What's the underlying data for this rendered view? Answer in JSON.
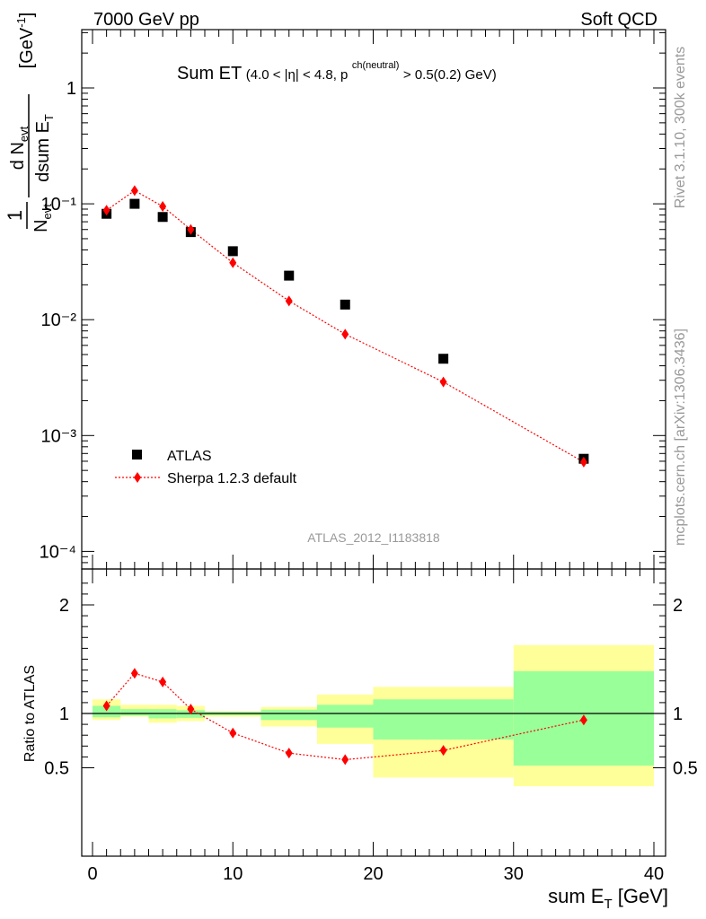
{
  "header": {
    "left": "7000 GeV pp",
    "right": "Soft QCD"
  },
  "side": {
    "rivet": "Rivet 3.1.10,  300k events",
    "mcplots": "mcplots.cern.ch [arXiv:1306.3436]"
  },
  "plot_title": {
    "main": "Sum ET",
    "cond_a": "(4.0 < |η| < 4.8, p",
    "cond_sup": "ch(neutral)",
    "cond_b": " > 0.5(0.2) GeV)"
  },
  "analysis_id": "ATLAS_2012_I1183818",
  "colors": {
    "data": "#000000",
    "mc": "#ff0000",
    "band_inner": "#99ff99",
    "band_outer": "#ffff99"
  },
  "chart_data": [
    {
      "type": "scatter",
      "log_y": true,
      "ylim": [
        7e-05,
        3.2
      ],
      "xlim": [
        -1,
        41
      ],
      "ylabel": "1/N_evt dN_evt/dsum E_T [GeV^-1]",
      "yticks": [
        "10⁻⁴",
        "10⁻³",
        "10⁻²",
        "10⁻¹",
        "1"
      ],
      "legend_position": "bottom-left",
      "series": [
        {
          "name": "ATLAS",
          "marker": "square",
          "x": [
            1,
            3,
            5,
            7,
            10,
            14,
            18,
            25,
            35
          ],
          "y": [
            0.082,
            0.1,
            0.077,
            0.057,
            0.039,
            0.024,
            0.0135,
            0.0046,
            0.00063
          ]
        },
        {
          "name": "Sherpa 1.2.3 default",
          "marker": "diamond",
          "line": "dotted",
          "x": [
            1,
            3,
            5,
            7,
            10,
            14,
            18,
            25,
            35
          ],
          "y": [
            0.088,
            0.13,
            0.095,
            0.06,
            0.031,
            0.0145,
            0.0075,
            0.0029,
            0.00059
          ]
        }
      ]
    },
    {
      "type": "line",
      "xlabel": "sum E_T [GeV]",
      "ylabel": "Ratio to ATLAS",
      "xlim": [
        -1,
        41
      ],
      "ylim": [
        0.35,
        2.25
      ],
      "xticks": [
        0,
        10,
        20,
        30,
        40
      ],
      "yticks": [
        0.5,
        1,
        2
      ],
      "bands": [
        {
          "x0": 0,
          "x1": 2,
          "inner": [
            0.965,
            1.07
          ],
          "outer": [
            0.94,
            1.13
          ]
        },
        {
          "x0": 2,
          "x1": 4,
          "inner": [
            0.98,
            1.04
          ],
          "outer": [
            0.97,
            1.08
          ]
        },
        {
          "x0": 4,
          "x1": 6,
          "inner": [
            0.955,
            1.04
          ],
          "outer": [
            0.915,
            1.08
          ]
        },
        {
          "x0": 6,
          "x1": 8,
          "inner": [
            0.96,
            1.03
          ],
          "outer": [
            0.93,
            1.07
          ]
        },
        {
          "x0": 8,
          "x1": 12,
          "inner": [
            0.985,
            1.015
          ],
          "outer": [
            0.97,
            1.02
          ]
        },
        {
          "x0": 12,
          "x1": 16,
          "inner": [
            0.94,
            1.035
          ],
          "outer": [
            0.88,
            1.06
          ]
        },
        {
          "x0": 16,
          "x1": 20,
          "inner": [
            0.87,
            1.08
          ],
          "outer": [
            0.72,
            1.175
          ]
        },
        {
          "x0": 20,
          "x1": 30,
          "inner": [
            0.76,
            1.13
          ],
          "outer": [
            0.41,
            1.245
          ]
        },
        {
          "x0": 30,
          "x1": 40,
          "inner": [
            0.52,
            1.39
          ],
          "outer": [
            0.33,
            1.63
          ]
        }
      ],
      "series": [
        {
          "name": "Sherpa 1.2.3 default",
          "marker": "diamond",
          "line": "dotted",
          "x": [
            1,
            3,
            5,
            7,
            10,
            14,
            18,
            25,
            35
          ],
          "y": [
            1.07,
            1.37,
            1.29,
            1.04,
            0.82,
            0.635,
            0.575,
            0.66,
            0.94
          ]
        }
      ]
    }
  ]
}
